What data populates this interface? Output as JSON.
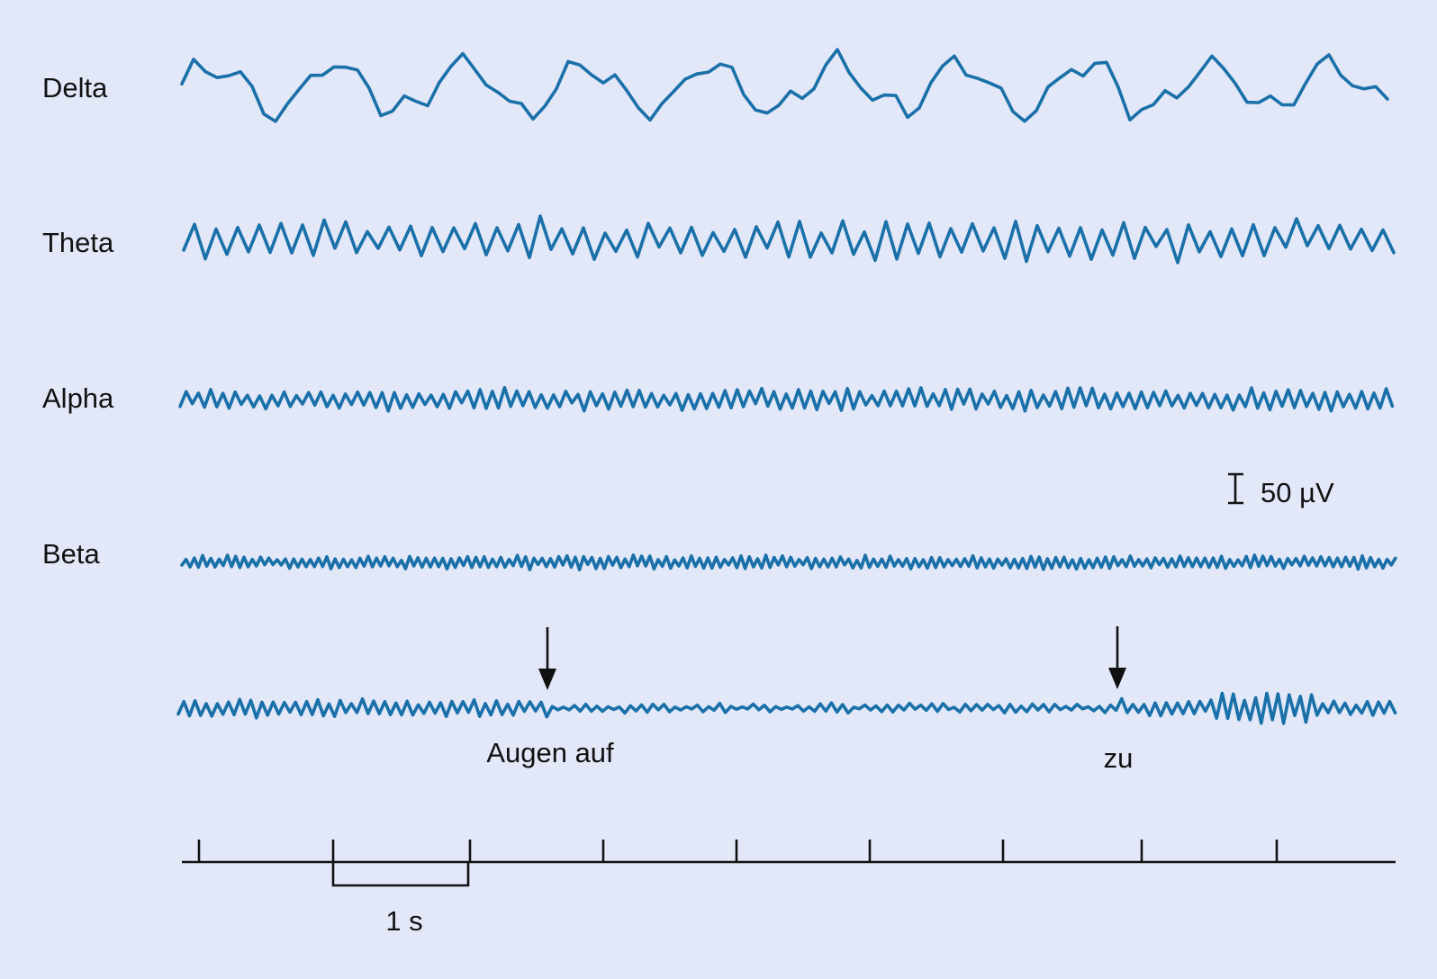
{
  "colors": {
    "background": "#e2e8f8",
    "trace": "#1a70a8",
    "ink": "#111111"
  },
  "bands": [
    {
      "label": "Delta"
    },
    {
      "label": "Theta"
    },
    {
      "label": "Alpha"
    },
    {
      "label": "Beta"
    },
    {
      "label": ""
    }
  ],
  "scale_bar": {
    "label": "50 µV"
  },
  "events": [
    {
      "label": "Augen auf"
    },
    {
      "label": "zu"
    }
  ],
  "time_axis": {
    "tick_count": 9,
    "scale_label": "1 s"
  }
}
